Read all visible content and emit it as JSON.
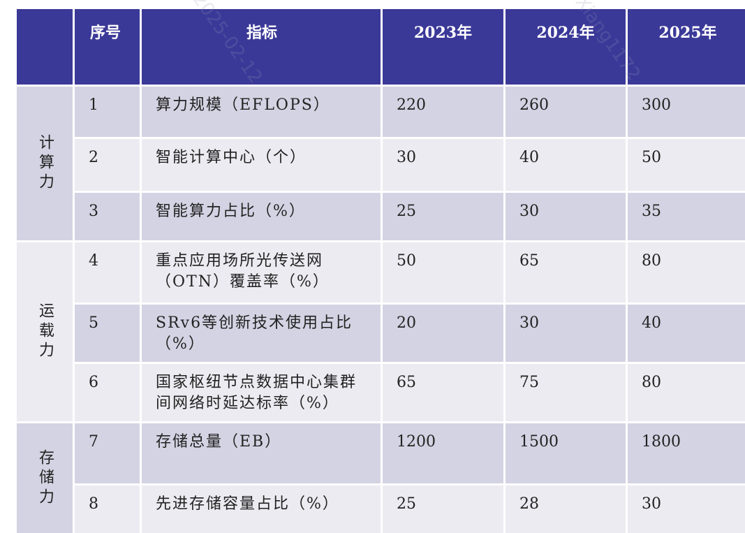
{
  "header": {
    "col0": "",
    "col1": "序号",
    "col2": "指标",
    "col3": "2023年",
    "col4": "2024年",
    "col5": "2025年"
  },
  "categories": [
    {
      "label": "计算力"
    },
    {
      "label": "运载力"
    },
    {
      "label": "存储力"
    }
  ],
  "rows": [
    {
      "idx": "1",
      "indicator": "算力规模（EFLOPS）",
      "y2023": "220",
      "y2024": "260",
      "y2025": "300"
    },
    {
      "idx": "2",
      "indicator": "智能计算中心（个）",
      "y2023": "30",
      "y2024": "40",
      "y2025": "50"
    },
    {
      "idx": "3",
      "indicator": "智能算力占比（%）",
      "y2023": "25",
      "y2024": "30",
      "y2025": "35"
    },
    {
      "idx": "4",
      "indicator": "重点应用场所光传送网（OTN）覆盖率（%）",
      "y2023": "50",
      "y2024": "65",
      "y2025": "80"
    },
    {
      "idx": "5",
      "indicator": "SRv6等创新技术使用占比（%）",
      "y2023": "20",
      "y2024": "30",
      "y2025": "40"
    },
    {
      "idx": "6",
      "indicator": "国家枢纽节点数据中心集群间网络时延达标率（%）",
      "y2023": "65",
      "y2024": "75",
      "y2025": "80"
    },
    {
      "idx": "7",
      "indicator": "存储总量（EB）",
      "y2023": "1200",
      "y2024": "1500",
      "y2025": "1800"
    },
    {
      "idx": "8",
      "indicator": "先进存储容量占比（%）",
      "y2023": "25",
      "y2024": "28",
      "y2025": "30"
    }
  ],
  "watermark": {
    "date": "2025-02-12",
    "user": "Xiang1172"
  }
}
